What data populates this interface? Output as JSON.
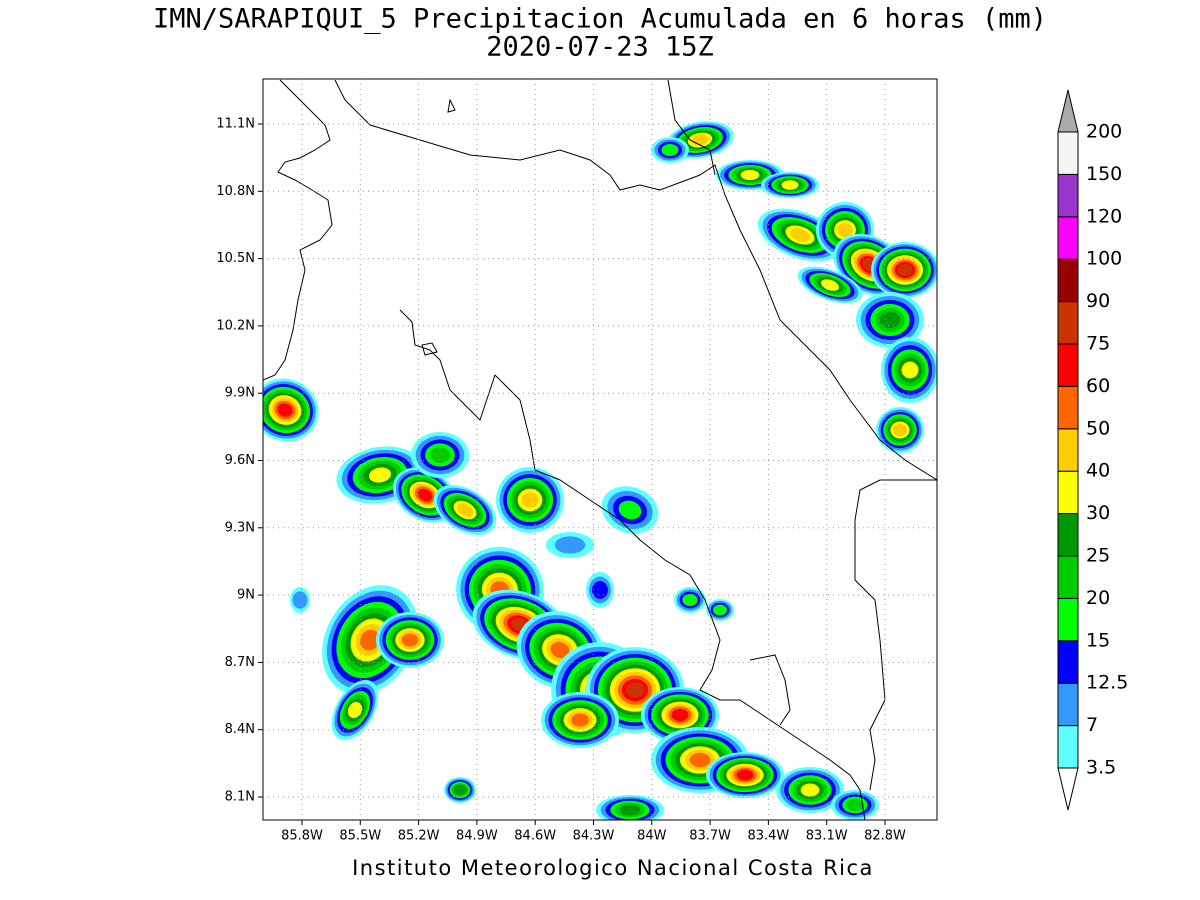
{
  "title": "IMN/SARAPIQUI_5 Precipitacion Acumulada en 6 horas (mm)",
  "subtitle": "2020-07-23 15Z",
  "map": {
    "lat_labels": [
      "11.1N",
      "10.8N",
      "10.5N",
      "10.2N",
      "9.9N",
      "9.6N",
      "9.3N",
      "9N",
      "8.7N",
      "8.4N",
      "8.1N"
    ],
    "lon_labels": [
      "85.8W",
      "85.5W",
      "85.2W",
      "84.9W",
      "84.6W",
      "84.3W",
      "84W",
      "83.7W",
      "83.4W",
      "83.1W",
      "82.8W"
    ]
  },
  "colorbar": {
    "labels": [
      "3.5",
      "7",
      "12.5",
      "15",
      "20",
      "25",
      "30",
      "40",
      "50",
      "60",
      "75",
      "90",
      "100",
      "120",
      "150",
      "200"
    ],
    "below_color": "#ffffff",
    "colors": [
      "#60ffff",
      "#3399ff",
      "#0000ff",
      "#00ff00",
      "#00cc00",
      "#009900",
      "#ffff00",
      "#ffcc00",
      "#ff6600",
      "#ff0000",
      "#cc3300",
      "#990000",
      "#ff00ff",
      "#9933cc",
      "#f5f5f5"
    ],
    "above_color": "#aaaaaa"
  },
  "footer": "Instituto Meteorologico Nacional Costa Rica"
}
